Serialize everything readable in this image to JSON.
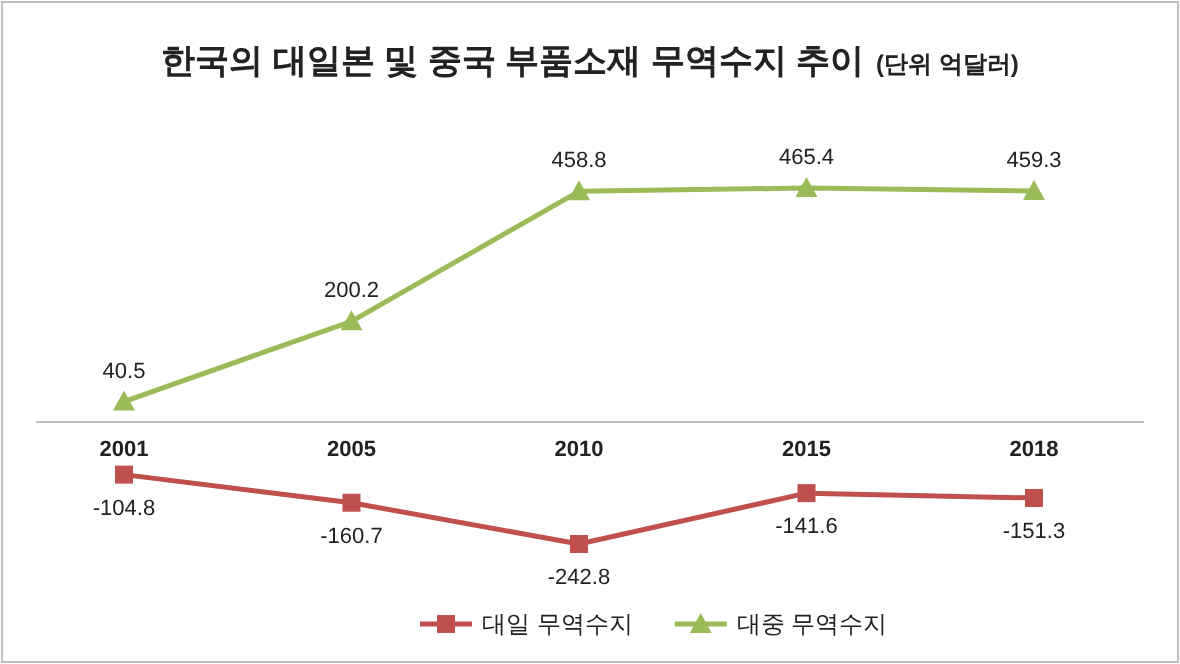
{
  "chart_data": {
    "type": "line",
    "title": "한국의 대일본 및 중국 부품소재 무역수지 추이",
    "subtitle": "(단위 억달러)",
    "categories": [
      "2001",
      "2005",
      "2010",
      "2015",
      "2018"
    ],
    "series": [
      {
        "name": "대일 무역수지",
        "color": "#c0504d",
        "marker": "square",
        "values": [
          -104.8,
          -160.7,
          -242.8,
          -141.6,
          -151.3
        ]
      },
      {
        "name": "대중 무역수지",
        "color": "#9bbb59",
        "marker": "triangle",
        "values": [
          40.5,
          200.2,
          458.8,
          465.4,
          459.3
        ]
      }
    ],
    "data_labels": true,
    "legend": "bottom",
    "line_style": "solid"
  }
}
